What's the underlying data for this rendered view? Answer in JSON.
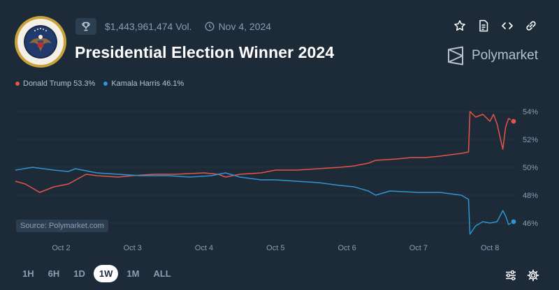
{
  "header": {
    "volume": "$1,443,961,474 Vol.",
    "date": "Nov 4, 2024",
    "title": "Presidential Election Winner 2024",
    "brand": "Polymarket",
    "icons": [
      "trophy-icon",
      "clock-icon",
      "star-icon",
      "document-icon",
      "code-icon",
      "link-icon",
      "polymarket-logo-icon"
    ]
  },
  "legend": [
    {
      "label": "Donald Trump 53.3%",
      "color": "#e5534b"
    },
    {
      "label": "Kamala Harris 46.1%",
      "color": "#2e95d3"
    }
  ],
  "source": "Source: Polymarket.com",
  "time_ranges": [
    "1H",
    "6H",
    "1D",
    "1W",
    "1M",
    "ALL"
  ],
  "active_range": "1W",
  "chart_data": {
    "type": "line",
    "x_tick_labels": [
      "Oct 2",
      "Oct 3",
      "Oct 4",
      "Oct 5",
      "Oct 6",
      "Oct 7",
      "Oct 8"
    ],
    "y_tick_labels": [
      "54%",
      "52%",
      "50%",
      "48%",
      "46%"
    ],
    "ylim": [
      45,
      55
    ],
    "x_range_days": [
      1.36,
      8.35
    ],
    "grid": "horizontal dotted",
    "series": [
      {
        "name": "Donald Trump",
        "color": "#e5534b",
        "points": [
          [
            1.36,
            49.0
          ],
          [
            1.5,
            48.8
          ],
          [
            1.7,
            48.2
          ],
          [
            1.9,
            48.6
          ],
          [
            2.1,
            48.8
          ],
          [
            2.35,
            49.5
          ],
          [
            2.5,
            49.4
          ],
          [
            2.8,
            49.3
          ],
          [
            3.0,
            49.4
          ],
          [
            3.3,
            49.5
          ],
          [
            3.6,
            49.5
          ],
          [
            4.0,
            49.6
          ],
          [
            4.2,
            49.5
          ],
          [
            4.3,
            49.3
          ],
          [
            4.5,
            49.5
          ],
          [
            4.8,
            49.6
          ],
          [
            5.0,
            49.8
          ],
          [
            5.3,
            49.8
          ],
          [
            5.6,
            49.9
          ],
          [
            5.9,
            50.0
          ],
          [
            6.1,
            50.1
          ],
          [
            6.3,
            50.3
          ],
          [
            6.4,
            50.5
          ],
          [
            6.7,
            50.6
          ],
          [
            6.9,
            50.7
          ],
          [
            7.1,
            50.7
          ],
          [
            7.3,
            50.8
          ],
          [
            7.6,
            51.0
          ],
          [
            7.7,
            51.1
          ],
          [
            7.72,
            54.0
          ],
          [
            7.8,
            53.6
          ],
          [
            7.9,
            53.8
          ],
          [
            8.0,
            53.3
          ],
          [
            8.05,
            53.8
          ],
          [
            8.1,
            53.1
          ],
          [
            8.18,
            51.3
          ],
          [
            8.22,
            52.9
          ],
          [
            8.26,
            53.5
          ],
          [
            8.33,
            53.3
          ]
        ]
      },
      {
        "name": "Kamala Harris",
        "color": "#2e95d3",
        "points": [
          [
            1.36,
            49.8
          ],
          [
            1.6,
            50.0
          ],
          [
            1.9,
            49.8
          ],
          [
            2.1,
            49.7
          ],
          [
            2.2,
            49.9
          ],
          [
            2.5,
            49.6
          ],
          [
            2.8,
            49.5
          ],
          [
            3.1,
            49.4
          ],
          [
            3.5,
            49.4
          ],
          [
            3.8,
            49.3
          ],
          [
            4.1,
            49.4
          ],
          [
            4.3,
            49.6
          ],
          [
            4.5,
            49.3
          ],
          [
            4.8,
            49.1
          ],
          [
            5.0,
            49.1
          ],
          [
            5.3,
            49.0
          ],
          [
            5.6,
            48.9
          ],
          [
            5.9,
            48.7
          ],
          [
            6.1,
            48.6
          ],
          [
            6.3,
            48.3
          ],
          [
            6.4,
            48.0
          ],
          [
            6.6,
            48.3
          ],
          [
            7.0,
            48.2
          ],
          [
            7.3,
            48.2
          ],
          [
            7.6,
            48.0
          ],
          [
            7.7,
            47.7
          ],
          [
            7.72,
            45.2
          ],
          [
            7.8,
            45.8
          ],
          [
            7.9,
            46.1
          ],
          [
            8.0,
            46.0
          ],
          [
            8.1,
            46.1
          ],
          [
            8.18,
            46.9
          ],
          [
            8.22,
            46.5
          ],
          [
            8.26,
            45.9
          ],
          [
            8.33,
            46.1
          ]
        ]
      }
    ]
  }
}
